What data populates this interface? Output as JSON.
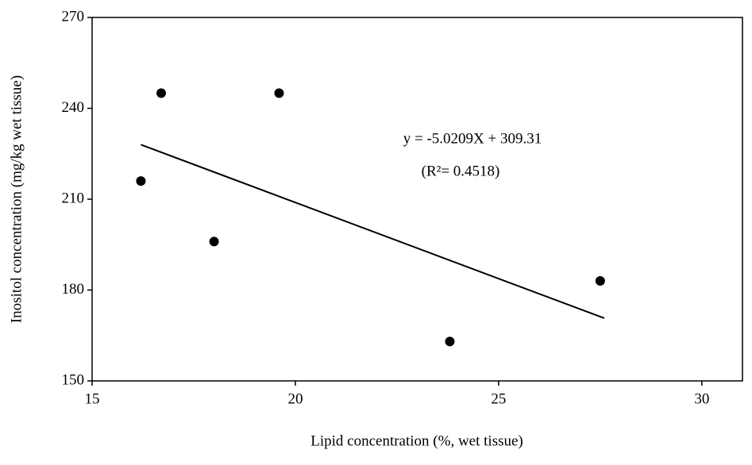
{
  "chart_data": {
    "type": "scatter",
    "xlabel": "Lipid concentration (%, wet tissue)",
    "ylabel": "Inositol concentration (mg/kg wet tissue)",
    "series": [
      {
        "name": "data",
        "color": "#000000",
        "x": [
          16.2,
          16.7,
          18.0,
          19.6,
          23.8,
          27.5
        ],
        "values": [
          216,
          245,
          196,
          245,
          163,
          183
        ]
      }
    ],
    "trendline": {
      "x": [
        16.2,
        27.6
      ],
      "values": [
        228.0,
        170.7
      ],
      "color": "#000000"
    },
    "annotations": [
      "y = -5.0209X + 309.31",
      "(R²= 0.4518)"
    ],
    "xlim": [
      15,
      31
    ],
    "xticks": [
      15,
      20,
      25,
      30
    ],
    "ylim": [
      150,
      270
    ],
    "yticks": [
      150,
      180,
      210,
      240,
      270
    ],
    "grid": false
  }
}
